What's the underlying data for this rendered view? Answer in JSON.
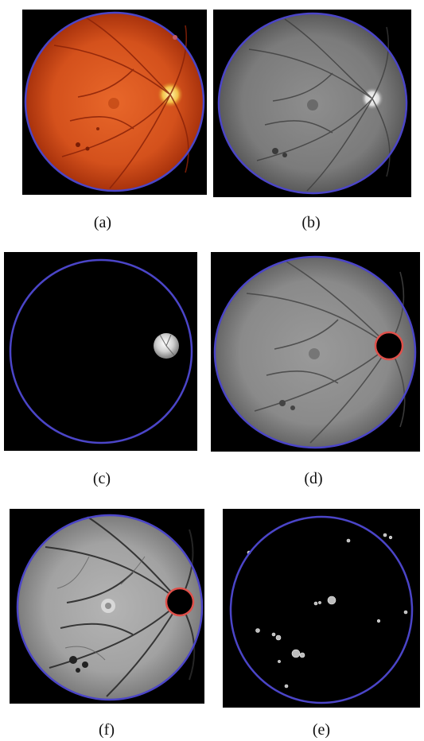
{
  "figure": {
    "background": "#ffffff",
    "ring_color": "#4b45c8",
    "optic_ring_color": "#e0504a",
    "panels": [
      {
        "id": "a",
        "label": "(a)",
        "content": "color fundus photograph"
      },
      {
        "id": "b",
        "label": "(b)",
        "content": "grayscale fundus"
      },
      {
        "id": "c",
        "label": "(c)",
        "content": "optic disc only"
      },
      {
        "id": "d",
        "label": "(d)",
        "content": "fundus with optic disc masked"
      },
      {
        "id": "f",
        "label": "(f)",
        "content": "contrast-enhanced fundus with optic disc masked"
      },
      {
        "id": "e",
        "label": "(e)",
        "content": "detected bright lesions"
      }
    ]
  }
}
